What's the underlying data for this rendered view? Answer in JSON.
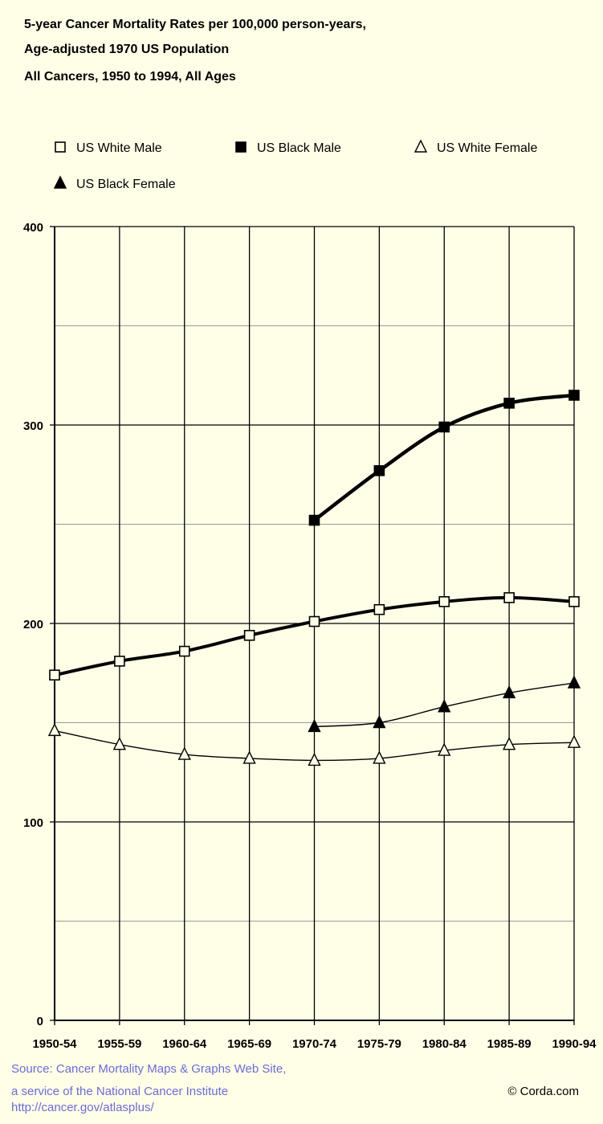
{
  "chart_data": {
    "type": "line",
    "title": [
      "5-year Cancer Mortality Rates per 100,000 person-years,",
      "Age-adjusted 1970 US Population",
      "All Cancers, 1950 to 1994, All Ages"
    ],
    "categories": [
      "1950-54",
      "1955-59",
      "1960-64",
      "1965-69",
      "1970-74",
      "1975-79",
      "1980-84",
      "1985-89",
      "1990-94"
    ],
    "ylim": [
      0,
      400
    ],
    "yticks": [
      0,
      100,
      200,
      300,
      400
    ],
    "grid": true,
    "legend_position": "top",
    "series": [
      {
        "name": "US White Male",
        "marker": "open-square",
        "color": "#000000",
        "values": [
          174,
          181,
          186,
          194,
          201,
          207,
          211,
          213,
          211
        ]
      },
      {
        "name": "US Black Male",
        "marker": "filled-square",
        "color": "#000000",
        "values": [
          null,
          null,
          null,
          null,
          252,
          277,
          299,
          311,
          315
        ]
      },
      {
        "name": "US White Female",
        "marker": "open-triangle",
        "color": "#000000",
        "values": [
          146,
          139,
          134,
          132,
          131,
          132,
          136,
          139,
          140
        ]
      },
      {
        "name": "US Black Female",
        "marker": "filled-triangle",
        "color": "#000000",
        "values": [
          null,
          null,
          null,
          null,
          148,
          150,
          158,
          165,
          170
        ]
      }
    ]
  },
  "footer": {
    "source_line1": "Source:  Cancer Mortality Maps & Graphs Web Site,",
    "source_line2": "a service of the National Cancer Institute",
    "source_line3": "http://cancer.gov/atlasplus/",
    "credit": "© Corda.com"
  }
}
